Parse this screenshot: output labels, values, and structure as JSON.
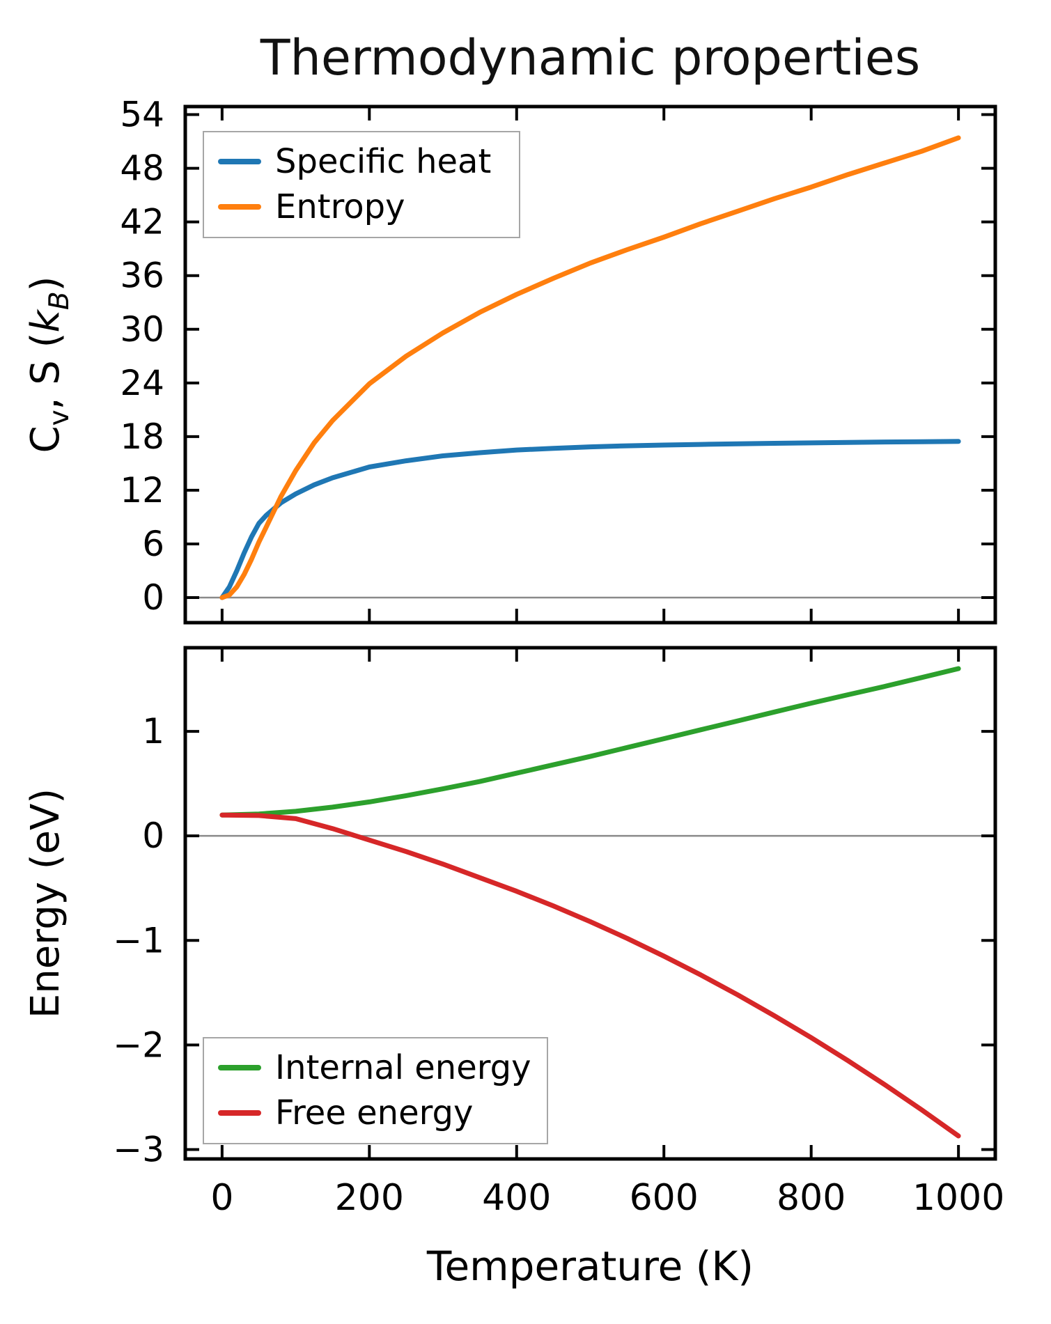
{
  "title": "Thermodynamic properties",
  "colors": {
    "frame": "#000000",
    "zero_line": "#8a8a8a",
    "background": "#ffffff",
    "specific_heat": "#1f77b4",
    "entropy": "#ff7f0e",
    "internal_energy": "#2ca02c",
    "free_energy": "#d62728"
  },
  "chart_data": [
    {
      "type": "line",
      "panel": "thermal-properties",
      "ylabel": "C_v, S (k_B)",
      "ylabel_rich": [
        {
          "t": "C"
        },
        {
          "t": "v",
          "sub": true
        },
        {
          "t": ", S ("
        },
        {
          "t": "k",
          "italic": true
        },
        {
          "t": "B",
          "sub": true,
          "italic": true
        },
        {
          "t": ")"
        }
      ],
      "xlabel": "",
      "xlim": [
        -50,
        1050
      ],
      "ylim": [
        -2.8,
        54.9
      ],
      "x_ticks": [
        0,
        200,
        400,
        600,
        800,
        1000
      ],
      "x_tick_labels": null,
      "y_ticks": [
        0,
        6,
        12,
        18,
        24,
        30,
        36,
        42,
        48,
        54
      ],
      "y_tick_labels": [
        "0",
        "6",
        "12",
        "18",
        "24",
        "30",
        "36",
        "42",
        "48",
        "54"
      ],
      "zero_line": 0,
      "grid": false,
      "legend": {
        "position": "upper left",
        "entries": [
          "Specific heat",
          "Entropy"
        ]
      },
      "series": [
        {
          "name": "Specific heat",
          "color": "#1f77b4",
          "x": [
            0,
            10,
            20,
            30,
            40,
            50,
            60,
            80,
            100,
            125,
            150,
            200,
            250,
            300,
            350,
            400,
            450,
            500,
            550,
            600,
            650,
            700,
            750,
            800,
            850,
            900,
            950,
            1000
          ],
          "y": [
            0,
            1.2,
            3.0,
            5.0,
            6.8,
            8.3,
            9.2,
            10.6,
            11.6,
            12.6,
            13.4,
            14.6,
            15.3,
            15.85,
            16.2,
            16.5,
            16.68,
            16.85,
            16.97,
            17.06,
            17.13,
            17.2,
            17.25,
            17.3,
            17.35,
            17.4,
            17.43,
            17.46
          ]
        },
        {
          "name": "Entropy",
          "color": "#ff7f0e",
          "x": [
            0,
            10,
            20,
            30,
            40,
            50,
            60,
            80,
            100,
            125,
            150,
            200,
            250,
            300,
            350,
            400,
            450,
            500,
            550,
            600,
            650,
            700,
            750,
            800,
            850,
            900,
            950,
            1000
          ],
          "y": [
            0,
            0.3,
            1.2,
            2.6,
            4.3,
            6.2,
            7.9,
            11.3,
            14.2,
            17.3,
            19.8,
            23.9,
            27.0,
            29.6,
            31.9,
            33.9,
            35.7,
            37.4,
            38.9,
            40.3,
            41.8,
            43.2,
            44.6,
            45.9,
            47.3,
            48.6,
            49.9,
            51.4
          ]
        }
      ]
    },
    {
      "type": "line",
      "panel": "energies",
      "ylabel": "Energy (eV)",
      "ylabel_rich": [
        {
          "t": "Energy (eV)"
        }
      ],
      "xlabel": "Temperature (K)",
      "xlim": [
        -50,
        1050
      ],
      "ylim": [
        -3.09,
        1.8
      ],
      "x_ticks": [
        0,
        200,
        400,
        600,
        800,
        1000
      ],
      "x_tick_labels": [
        "0",
        "200",
        "400",
        "600",
        "800",
        "1000"
      ],
      "y_ticks": [
        -3,
        -2,
        -1,
        0,
        1
      ],
      "y_tick_labels": [
        "−3",
        "−2",
        "−1",
        "0",
        "1"
      ],
      "zero_line": 0,
      "grid": false,
      "legend": {
        "position": "lower left",
        "entries": [
          "Internal energy",
          "Free energy"
        ]
      },
      "series": [
        {
          "name": "Internal energy",
          "color": "#2ca02c",
          "x": [
            0,
            50,
            100,
            150,
            200,
            250,
            300,
            350,
            400,
            450,
            500,
            550,
            600,
            650,
            700,
            750,
            800,
            850,
            900,
            950,
            1000
          ],
          "y": [
            0.2,
            0.21,
            0.235,
            0.275,
            0.325,
            0.385,
            0.45,
            0.52,
            0.6,
            0.68,
            0.76,
            0.845,
            0.93,
            1.015,
            1.1,
            1.185,
            1.27,
            1.35,
            1.43,
            1.515,
            1.6
          ]
        },
        {
          "name": "Free energy",
          "color": "#d62728",
          "x": [
            0,
            50,
            100,
            150,
            200,
            250,
            300,
            350,
            400,
            450,
            500,
            550,
            600,
            650,
            700,
            750,
            800,
            850,
            900,
            950,
            1000
          ],
          "y": [
            0.2,
            0.195,
            0.165,
            0.07,
            -0.04,
            -0.15,
            -0.27,
            -0.4,
            -0.53,
            -0.67,
            -0.82,
            -0.98,
            -1.15,
            -1.33,
            -1.52,
            -1.72,
            -1.93,
            -2.15,
            -2.38,
            -2.62,
            -2.87
          ]
        }
      ]
    }
  ]
}
